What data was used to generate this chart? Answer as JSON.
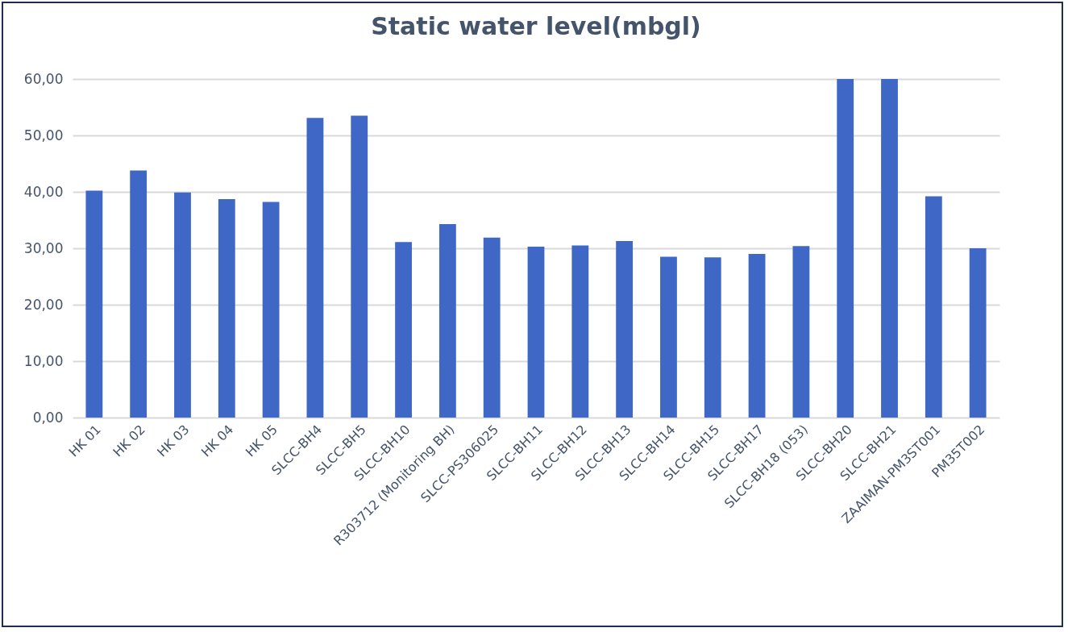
{
  "chart_data": {
    "type": "bar",
    "title": "Static water level(mbgl)",
    "categories": [
      "HK 01",
      "HK 02",
      "HK 03",
      "HK 04",
      "HK 05",
      "SLCC-BH4",
      "SLCC-BH5",
      "SLCC-BH10",
      "R303712 (Monitoring BH)",
      "SLCC-PS306025",
      "SLCC-BH11",
      "SLCC-BH12",
      "SLCC-BH13",
      "SLCC-BH14",
      "SLCC-BH15",
      "SLCC-BH17",
      "SLCC-BH18 (053)",
      "SLCC-BH20",
      "SLCC-BH21",
      "ZAAIMAN-PM3ST001",
      "PM35T002"
    ],
    "values": [
      40.2,
      43.8,
      39.9,
      38.7,
      38.2,
      53.1,
      53.5,
      31.1,
      34.3,
      31.9,
      30.3,
      30.5,
      31.3,
      28.5,
      28.4,
      29.0,
      30.4,
      60.0,
      60.0,
      39.2,
      30.0
    ],
    "color": "#3f68c6",
    "ylim": [
      0,
      60
    ],
    "yticks": [
      {
        "value": 0,
        "label": "0,00"
      },
      {
        "value": 10,
        "label": "10,00"
      },
      {
        "value": 20,
        "label": "20,00"
      },
      {
        "value": 30,
        "label": "30,00"
      },
      {
        "value": 40,
        "label": "40,00"
      },
      {
        "value": 50,
        "label": "50,00"
      },
      {
        "value": 60,
        "label": "60,00"
      }
    ],
    "grid": "y"
  }
}
